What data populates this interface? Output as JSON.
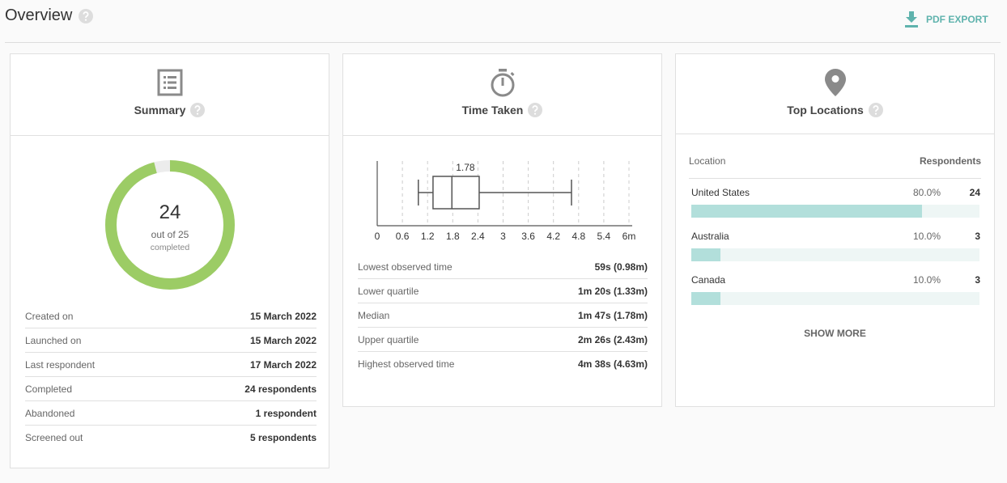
{
  "header": {
    "title": "Overview",
    "export": "PDF EXPORT"
  },
  "summary": {
    "title": "Summary",
    "donut": {
      "completed": 24,
      "total": 25,
      "total_label": "out of 25",
      "caption": "completed"
    },
    "rows": [
      {
        "label": "Created on",
        "value": "15 March 2022"
      },
      {
        "label": "Launched on",
        "value": "15 March 2022"
      },
      {
        "label": "Last respondent",
        "value": "17 March 2022"
      },
      {
        "label": "Completed",
        "value": "24 respondents"
      },
      {
        "label": "Abandoned",
        "value": "1 respondent"
      },
      {
        "label": "Screened out",
        "value": "5 respondents"
      }
    ]
  },
  "time_taken": {
    "title": "Time Taken",
    "box": {
      "min": 0.98,
      "q1": 1.33,
      "median": 1.78,
      "q3": 2.43,
      "max": 4.63
    },
    "xlim": [
      0,
      6
    ],
    "xticks": [
      0,
      0.6,
      1.2,
      1.8,
      2.4,
      3,
      3.6,
      4.2,
      4.8,
      5.4,
      {
        "value": 6,
        "label": "6m"
      }
    ],
    "rows": [
      {
        "label": "Lowest observed time",
        "value": "59s (0.98m)"
      },
      {
        "label": "Lower quartile",
        "value": "1m 20s (1.33m)"
      },
      {
        "label": "Median",
        "value": "1m 47s (1.78m)"
      },
      {
        "label": "Upper quartile",
        "value": "2m 26s (2.43m)"
      },
      {
        "label": "Highest observed time",
        "value": "4m 38s (4.63m)"
      }
    ]
  },
  "top_locations": {
    "title": "Top Locations",
    "columns": [
      "Location",
      "Respondents"
    ],
    "rows": [
      {
        "name": "United States",
        "percent": 80,
        "percent_label": "80.0%",
        "count": 24
      },
      {
        "name": "Australia",
        "percent": 10,
        "percent_label": "10.0%",
        "count": 3
      },
      {
        "name": "Canada",
        "percent": 10,
        "percent_label": "10.0%",
        "count": 3
      }
    ],
    "more": "SHOW MORE"
  }
}
